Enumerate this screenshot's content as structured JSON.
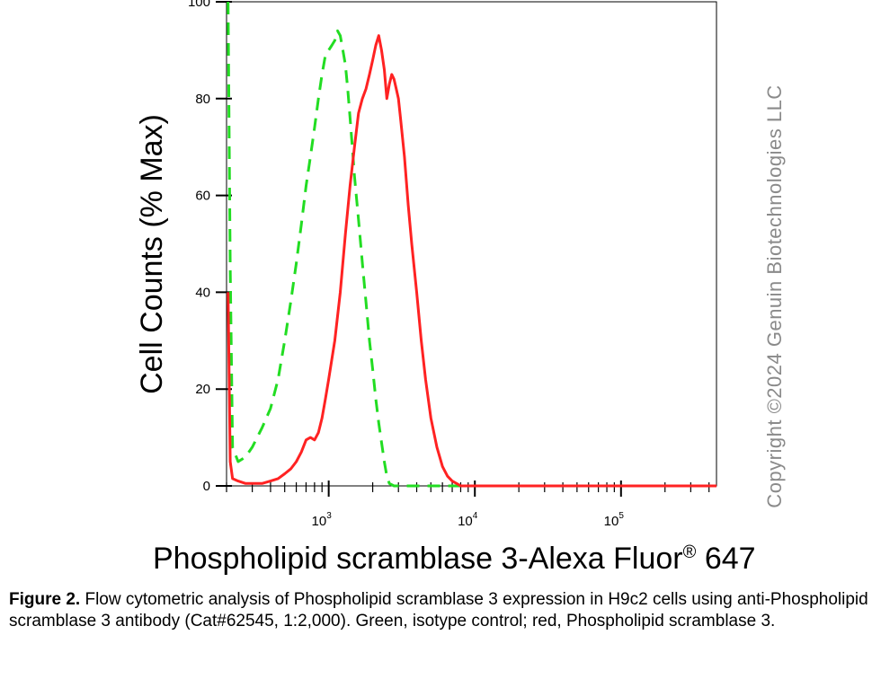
{
  "chart_data": {
    "type": "line",
    "xlabel": "Phospholipid scramblase 3-Alexa Fluor",
    "xlabel_mark": "®",
    "xlabel_suffix": " 647",
    "ylabel": "Cell Counts (% Max)",
    "x_scale": "log",
    "xlim": [
      200,
      450000
    ],
    "ylim": [
      0,
      100
    ],
    "y_ticks": [
      0,
      20,
      40,
      60,
      80,
      100
    ],
    "y_tick_labels": [
      "0",
      "20",
      "40",
      "60",
      "80",
      "100"
    ],
    "x_ticks": [
      1000,
      10000,
      100000
    ],
    "x_tick_labels": [
      {
        "base": "10",
        "exp": "3"
      },
      {
        "base": "10",
        "exp": "4"
      },
      {
        "base": "10",
        "exp": "5"
      }
    ],
    "grid": false,
    "series": [
      {
        "color": "#22dd22",
        "style": "dashed",
        "x": [
          205,
          212,
          220,
          240,
          270,
          300,
          350,
          400,
          450,
          500,
          550,
          600,
          650,
          700,
          750,
          800,
          850,
          900,
          950,
          1000,
          1050,
          1100,
          1150,
          1200,
          1250,
          1300,
          1350,
          1400,
          1450,
          1500,
          1600,
          1700,
          1800,
          1900,
          2000,
          2100,
          2200,
          2300,
          2400,
          2500,
          2600,
          2800,
          3200,
          5000,
          10000,
          450000
        ],
        "y": [
          100,
          45,
          8,
          5,
          6,
          8,
          12,
          16,
          22,
          30,
          38,
          46,
          54,
          62,
          68,
          74,
          80,
          85,
          89,
          90,
          91,
          92,
          94,
          93,
          90,
          87,
          82,
          76,
          70,
          64,
          55,
          46,
          38,
          30,
          24,
          18,
          13,
          9,
          5,
          2,
          0.5,
          0,
          0,
          0,
          0,
          0
        ]
      },
      {
        "color": "#ff2222",
        "style": "solid",
        "x": [
          205,
          212,
          220,
          240,
          270,
          300,
          350,
          400,
          450,
          500,
          550,
          600,
          650,
          700,
          750,
          800,
          850,
          900,
          950,
          1000,
          1100,
          1200,
          1300,
          1400,
          1500,
          1600,
          1700,
          1800,
          1900,
          2000,
          2100,
          2200,
          2300,
          2400,
          2500,
          2600,
          2700,
          2800,
          2900,
          3000,
          3100,
          3300,
          3500,
          3700,
          4000,
          4300,
          4600,
          5000,
          5500,
          6000,
          6500,
          7000,
          7500,
          8000,
          9000,
          10000,
          450000
        ],
        "y": [
          40,
          5,
          1.5,
          1,
          0.5,
          0.5,
          0.5,
          1,
          1.5,
          2.5,
          3.5,
          5,
          7,
          9.5,
          10,
          9.5,
          11,
          14,
          18,
          22,
          30,
          40,
          52,
          62,
          70,
          77,
          80,
          82,
          85,
          88,
          91,
          93,
          90,
          86,
          80,
          83,
          85,
          84,
          82,
          80,
          76,
          68,
          58,
          50,
          40,
          30,
          22,
          14,
          8,
          4,
          2,
          1,
          0.5,
          0,
          0,
          0,
          0
        ]
      }
    ]
  },
  "watermark": "Copyright ©2024 Genuin Biotechnologies LLC",
  "caption": {
    "label": "Figure 2.",
    "text": " Flow cytometric analysis of Phospholipid scramblase 3 expression in H9c2 cells using anti-Phospholipid scramblase 3 antibody (Cat#62545, 1:2,000). Green, isotype control; red, Phospholipid scramblase 3."
  }
}
